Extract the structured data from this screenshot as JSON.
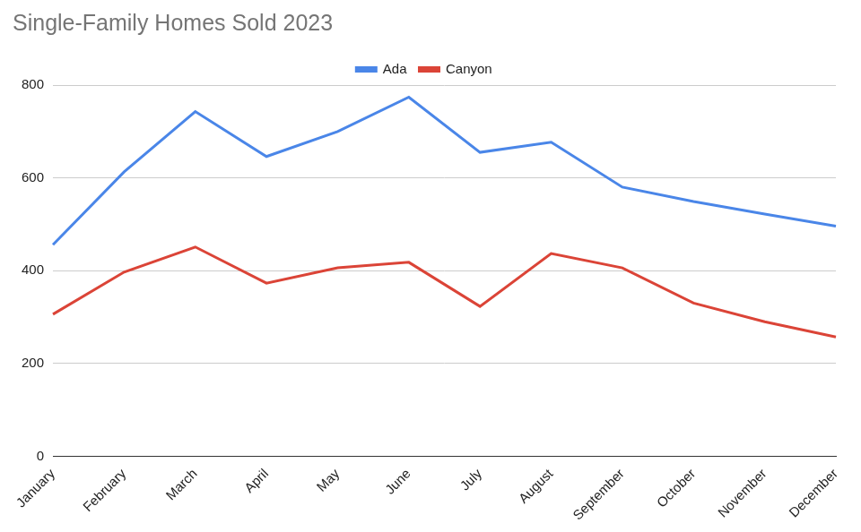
{
  "chart_data": {
    "type": "line",
    "title": "Single-Family Homes Sold 2023",
    "categories": [
      "January",
      "February",
      "March",
      "April",
      "May",
      "June",
      "July",
      "August",
      "September",
      "October",
      "November",
      "December"
    ],
    "series": [
      {
        "name": "Ada",
        "color": "#4a86e8",
        "values": [
          456,
          613,
          743,
          646,
          700,
          774,
          655,
          677,
          580,
          549,
          522,
          496
        ]
      },
      {
        "name": "Canyon",
        "color": "#db4437",
        "values": [
          306,
          397,
          451,
          373,
          406,
          418,
          323,
          437,
          406,
          330,
          290,
          257
        ]
      }
    ],
    "ylim": [
      0,
      800
    ],
    "yticks": [
      0,
      200,
      400,
      600,
      800
    ],
    "grid": true,
    "legend": "top"
  }
}
